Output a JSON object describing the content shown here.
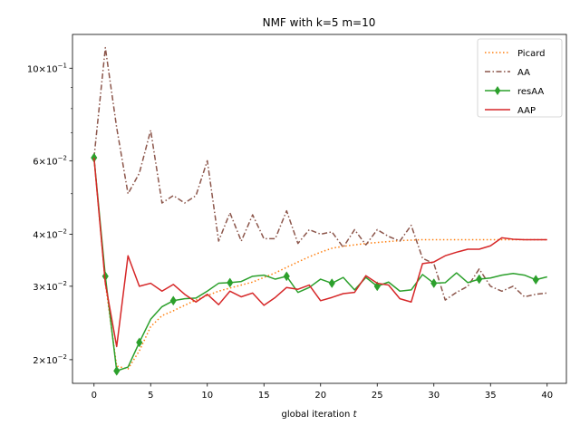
{
  "chart_data": {
    "type": "line",
    "title": "NMF with k=5 m=10",
    "xlabel": "global iteration t",
    "xlabel_main": "global iteration",
    "xlabel_var": "t",
    "ylabel": "",
    "yscale": "log",
    "xlim": [
      -1.9,
      41.7
    ],
    "ylim": [
      0.01755,
      0.1205
    ],
    "x_ticks": [
      0,
      5,
      10,
      15,
      20,
      25,
      30,
      35,
      40
    ],
    "x_tick_labels": [
      "0",
      "5",
      "10",
      "15",
      "20",
      "25",
      "30",
      "35",
      "40"
    ],
    "y_major_ticks": [
      {
        "value": 0.02,
        "mantissa": "2",
        "exponent": "−2"
      },
      {
        "value": 0.03,
        "mantissa": "3",
        "exponent": "−2"
      },
      {
        "value": 0.04,
        "mantissa": "4",
        "exponent": "−2"
      },
      {
        "value": 0.06,
        "mantissa": "6",
        "exponent": "−2"
      },
      {
        "value": 0.1,
        "mantissa": "10",
        "exponent": "−1"
      }
    ],
    "y_minor_ticks": [
      0.05,
      0.07,
      0.08,
      0.09
    ],
    "grid": false,
    "legend_position": "top-right",
    "x": [
      0,
      1,
      2,
      3,
      4,
      5,
      6,
      7,
      8,
      9,
      10,
      11,
      12,
      13,
      14,
      15,
      16,
      17,
      18,
      19,
      20,
      21,
      22,
      23,
      24,
      25,
      26,
      27,
      28,
      29,
      30,
      31,
      32,
      33,
      34,
      35,
      36,
      37,
      38,
      39,
      40
    ],
    "series": [
      {
        "name": "Picard",
        "color": "#ff7f0e",
        "style": "dotted",
        "marker": "none",
        "values": [
          0.061,
          0.0305,
          0.0193,
          0.019,
          0.021,
          0.024,
          0.0255,
          0.0262,
          0.027,
          0.0278,
          0.0285,
          0.0292,
          0.0297,
          0.0302,
          0.0307,
          0.0315,
          0.0323,
          0.0333,
          0.0343,
          0.0353,
          0.0362,
          0.037,
          0.0374,
          0.0377,
          0.038,
          0.0382,
          0.0384,
          0.0386,
          0.0387,
          0.0388,
          0.0388,
          0.0388,
          0.0388,
          0.0388,
          0.0388,
          0.0388,
          0.0388,
          0.0388,
          0.0388,
          0.0388,
          0.0388
        ]
      },
      {
        "name": "AA",
        "color": "#8c564b",
        "style": "dashdot",
        "marker": "none",
        "values": [
          0.061,
          0.112,
          0.072,
          0.05,
          0.056,
          0.071,
          0.0475,
          0.0495,
          0.0475,
          0.0495,
          0.06,
          0.0385,
          0.045,
          0.0385,
          0.0445,
          0.039,
          0.039,
          0.0455,
          0.038,
          0.041,
          0.04,
          0.0405,
          0.0372,
          0.041,
          0.0377,
          0.041,
          0.0395,
          0.0385,
          0.042,
          0.035,
          0.034,
          0.0278,
          0.029,
          0.03,
          0.033,
          0.03,
          0.0292,
          0.03,
          0.0283,
          0.0287,
          0.0289
        ]
      },
      {
        "name": "resAA",
        "color": "#2ca02c",
        "style": "solid",
        "marker": "diamond",
        "marker_every": [
          0,
          1,
          2,
          4,
          7,
          12,
          17,
          21,
          25,
          30,
          34,
          39
        ],
        "values": [
          0.061,
          0.0317,
          0.0188,
          0.0192,
          0.022,
          0.025,
          0.0268,
          0.0277,
          0.028,
          0.0281,
          0.0292,
          0.0305,
          0.0306,
          0.0308,
          0.0317,
          0.0319,
          0.0312,
          0.0317,
          0.029,
          0.0298,
          0.0312,
          0.0305,
          0.0315,
          0.0294,
          0.0315,
          0.03,
          0.0307,
          0.0292,
          0.0294,
          0.032,
          0.0305,
          0.0306,
          0.0323,
          0.0306,
          0.0312,
          0.0314,
          0.0319,
          0.0322,
          0.0319,
          0.0311,
          0.0316
        ]
      },
      {
        "name": "AAP",
        "color": "#d62728",
        "style": "solid",
        "marker": "none",
        "values": [
          0.061,
          0.0305,
          0.0215,
          0.0355,
          0.03,
          0.0305,
          0.0292,
          0.0303,
          0.0287,
          0.0275,
          0.0287,
          0.0271,
          0.0292,
          0.0283,
          0.0289,
          0.027,
          0.0282,
          0.0298,
          0.0295,
          0.0302,
          0.0277,
          0.0282,
          0.0288,
          0.029,
          0.0318,
          0.0305,
          0.0302,
          0.028,
          0.0275,
          0.034,
          0.0343,
          0.0355,
          0.0362,
          0.0368,
          0.0368,
          0.0375,
          0.0392,
          0.0389,
          0.0388,
          0.0388,
          0.0388
        ]
      }
    ]
  }
}
